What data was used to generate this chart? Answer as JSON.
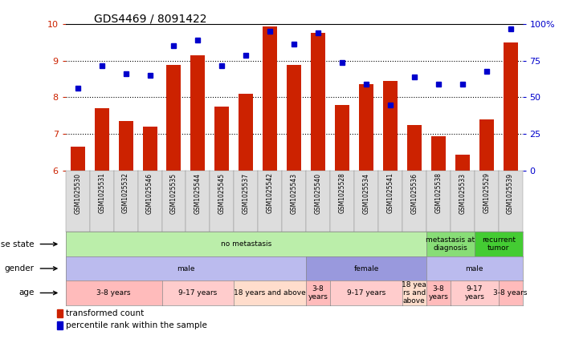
{
  "title": "GDS4469 / 8091422",
  "samples": [
    "GSM1025530",
    "GSM1025531",
    "GSM1025532",
    "GSM1025546",
    "GSM1025535",
    "GSM1025544",
    "GSM1025545",
    "GSM1025537",
    "GSM1025542",
    "GSM1025543",
    "GSM1025540",
    "GSM1025528",
    "GSM1025534",
    "GSM1025541",
    "GSM1025536",
    "GSM1025538",
    "GSM1025533",
    "GSM1025529",
    "GSM1025539"
  ],
  "bar_values": [
    6.65,
    7.7,
    7.35,
    7.2,
    8.88,
    9.15,
    7.75,
    8.1,
    9.93,
    8.88,
    9.75,
    7.8,
    8.35,
    8.45,
    7.25,
    6.95,
    6.45,
    7.4,
    9.5
  ],
  "dot_values": [
    8.25,
    8.85,
    8.65,
    8.6,
    9.4,
    9.55,
    8.85,
    9.15,
    9.8,
    9.45,
    9.75,
    8.95,
    8.35,
    7.8,
    8.55,
    8.35,
    8.35,
    8.7,
    9.85
  ],
  "ylim_left": [
    6,
    10
  ],
  "ylim_right": [
    0,
    100
  ],
  "yticks_left": [
    6,
    7,
    8,
    9,
    10
  ],
  "yticks_right": [
    0,
    25,
    50,
    75,
    100
  ],
  "bar_color": "#cc2200",
  "dot_color": "#0000cc",
  "disease_state_groups": [
    {
      "label": "no metastasis",
      "start": 0,
      "end": 15,
      "color": "#bbeeaa"
    },
    {
      "label": "metastasis at\ndiagnosis",
      "start": 15,
      "end": 17,
      "color": "#88dd77"
    },
    {
      "label": "recurrent\ntumor",
      "start": 17,
      "end": 19,
      "color": "#44cc33"
    }
  ],
  "gender_groups": [
    {
      "label": "male",
      "start": 0,
      "end": 10,
      "color": "#bbbbee"
    },
    {
      "label": "female",
      "start": 10,
      "end": 15,
      "color": "#9999dd"
    },
    {
      "label": "male",
      "start": 15,
      "end": 19,
      "color": "#bbbbee"
    }
  ],
  "age_groups": [
    {
      "label": "3-8 years",
      "start": 0,
      "end": 4,
      "color": "#ffbbbb"
    },
    {
      "label": "9-17 years",
      "start": 4,
      "end": 7,
      "color": "#ffcccc"
    },
    {
      "label": "18 years and above",
      "start": 7,
      "end": 10,
      "color": "#ffddcc"
    },
    {
      "label": "3-8\nyears",
      "start": 10,
      "end": 11,
      "color": "#ffbbbb"
    },
    {
      "label": "9-17 years",
      "start": 11,
      "end": 14,
      "color": "#ffcccc"
    },
    {
      "label": "18 yea\nrs and\nabove",
      "start": 14,
      "end": 15,
      "color": "#ffddcc"
    },
    {
      "label": "3-8\nyears",
      "start": 15,
      "end": 16,
      "color": "#ffbbbb"
    },
    {
      "label": "9-17\nyears",
      "start": 16,
      "end": 18,
      "color": "#ffcccc"
    },
    {
      "label": "3-8 years",
      "start": 18,
      "end": 19,
      "color": "#ffbbbb"
    }
  ],
  "legend_bar_label": "transformed count",
  "legend_dot_label": "percentile rank within the sample",
  "axis_color": "#cc2200",
  "right_axis_color": "#0000cc",
  "sample_label_bg": "#dddddd",
  "bg_color": "#ffffff"
}
